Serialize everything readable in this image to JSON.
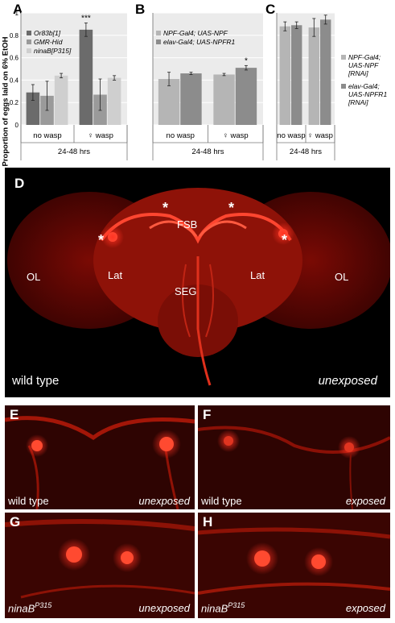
{
  "figure": {
    "y_axis_label": "Proportion of eggs laid on 6% EtOH",
    "panel_A": {
      "letter": "A",
      "legend": [
        "Or83b[1]",
        "GMR-Hid",
        "ninaB[P315]"
      ],
      "groups": [
        "no wasp",
        "♀ wasp"
      ],
      "timeline": "24-48 hrs",
      "sig": "***"
    },
    "panel_B": {
      "letter": "B",
      "legend": [
        "NPF-Gal4; UAS-NPF",
        "elav-Gal4; UAS-NPFR1"
      ],
      "groups": [
        "no wasp",
        "♀ wasp"
      ],
      "timeline": "24-48 hrs",
      "sig": "*"
    },
    "panel_C": {
      "letter": "C",
      "legend": [
        "NPF-Gal4; UAS-NPF [RNAi]",
        "elav-Gal4; UAS-NPFR1 [RNAi]"
      ],
      "groups": [
        "no wasp",
        "♀ wasp"
      ],
      "timeline": "24-48 hrs"
    },
    "panel_D": {
      "letter": "D",
      "labels": {
        "fsb": "FSB",
        "seg": "SEG",
        "lat_left": "Lat",
        "lat_right": "Lat",
        "ol_left": "OL",
        "ol_right": "OL",
        "star": "*"
      },
      "genotype": "wild type",
      "condition": "unexposed"
    },
    "panel_E": {
      "letter": "E",
      "genotype": "wild type",
      "condition": "unexposed"
    },
    "panel_F": {
      "letter": "F",
      "genotype": "wild type",
      "condition": "exposed"
    },
    "panel_G": {
      "letter": "G",
      "genotype": "ninaB",
      "genotype_sup": "P315",
      "condition": "unexposed"
    },
    "panel_H": {
      "letter": "H",
      "genotype": "ninaB",
      "genotype_sup": "P315",
      "condition": "exposed"
    }
  },
  "chart_data": [
    {
      "type": "bar",
      "panel": "A",
      "categories": [
        "no wasp",
        "♀ wasp"
      ],
      "series": [
        {
          "name": "Or83b[1]",
          "values": [
            0.29,
            0.85
          ],
          "errors": [
            0.07,
            0.06
          ],
          "color": "#6b6b6b"
        },
        {
          "name": "GMR-Hid",
          "values": [
            0.26,
            0.27
          ],
          "errors": [
            0.13,
            0.14
          ],
          "color": "#9a9a9a"
        },
        {
          "name": "ninaB[P315]",
          "values": [
            0.44,
            0.42
          ],
          "errors": [
            0.02,
            0.02
          ],
          "color": "#cfcfcf"
        }
      ],
      "ylim": [
        0,
        1
      ],
      "yticks": [
        0,
        0.2,
        0.4,
        0.6,
        0.8,
        1
      ],
      "annotations": [
        {
          "text": "***",
          "series": "Or83b[1]",
          "category": "♀ wasp"
        }
      ]
    },
    {
      "type": "bar",
      "panel": "B",
      "categories": [
        "no wasp",
        "♀ wasp"
      ],
      "series": [
        {
          "name": "NPF-Gal4; UAS-NPF",
          "values": [
            0.41,
            0.45
          ],
          "errors": [
            0.06,
            0.01
          ],
          "color": "#b5b5b5"
        },
        {
          "name": "elav-Gal4; UAS-NPFR1",
          "values": [
            0.46,
            0.51
          ],
          "errors": [
            0.01,
            0.02
          ],
          "color": "#8c8c8c"
        }
      ],
      "ylim": [
        0,
        1
      ],
      "yticks": [
        0,
        0.2,
        0.4,
        0.6,
        0.8,
        1
      ],
      "annotations": [
        {
          "text": "*",
          "series": "elav-Gal4; UAS-NPFR1",
          "category": "♀ wasp"
        }
      ]
    },
    {
      "type": "bar",
      "panel": "C",
      "categories": [
        "no wasp",
        "♀ wasp"
      ],
      "series": [
        {
          "name": "NPF-Gal4; UAS-NPF [RNAi]",
          "values": [
            0.88,
            0.87
          ],
          "errors": [
            0.04,
            0.08
          ],
          "color": "#b5b5b5"
        },
        {
          "name": "elav-Gal4; UAS-NPFR1 [RNAi]",
          "values": [
            0.89,
            0.94
          ],
          "errors": [
            0.03,
            0.04
          ],
          "color": "#8c8c8c"
        }
      ],
      "ylim": [
        0,
        1
      ],
      "yticks": [
        0,
        0.2,
        0.4,
        0.6,
        0.8,
        1
      ]
    }
  ]
}
